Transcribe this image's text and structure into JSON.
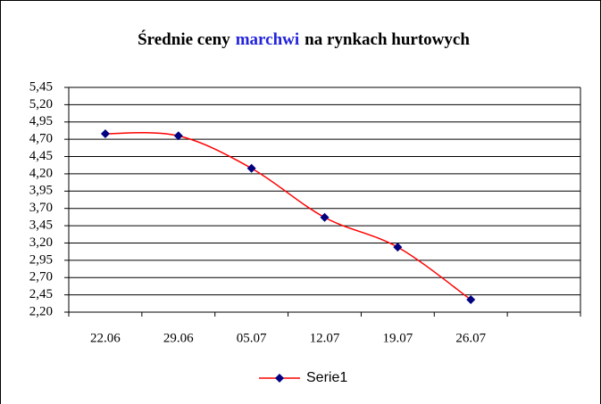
{
  "chart_data": {
    "type": "line",
    "title_parts": [
      "Średnie ceny",
      "marchwi",
      "na rynkach hurtowych"
    ],
    "title_colors": [
      "#000000",
      "#2222dd",
      "#000000"
    ],
    "categories": [
      "22.06",
      "29.06",
      "05.07",
      "12.07",
      "19.07",
      "26.07",
      null
    ],
    "series": [
      {
        "name": "Serie1",
        "color": "#ff0000",
        "marker_color": "#000080",
        "values": [
          4.78,
          4.75,
          4.28,
          3.57,
          3.14,
          2.38,
          null
        ]
      }
    ],
    "ylim": [
      2.2,
      5.45
    ],
    "yticks": [
      {
        "value": 2.2,
        "label": "2,20"
      },
      {
        "value": 2.45,
        "label": "2,45"
      },
      {
        "value": 2.7,
        "label": "2,70"
      },
      {
        "value": 2.95,
        "label": "2,95"
      },
      {
        "value": 3.2,
        "label": "3,20"
      },
      {
        "value": 3.45,
        "label": "3,45"
      },
      {
        "value": 3.7,
        "label": "3,70"
      },
      {
        "value": 3.95,
        "label": "3,95"
      },
      {
        "value": 4.2,
        "label": "4,20"
      },
      {
        "value": 4.45,
        "label": "4,45"
      },
      {
        "value": 4.7,
        "label": "4,70"
      },
      {
        "value": 4.95,
        "label": "4,95"
      },
      {
        "value": 5.2,
        "label": "5,20"
      },
      {
        "value": 5.45,
        "label": "5,45"
      }
    ],
    "grid": true,
    "smooth": true,
    "legend": "bottom"
  }
}
